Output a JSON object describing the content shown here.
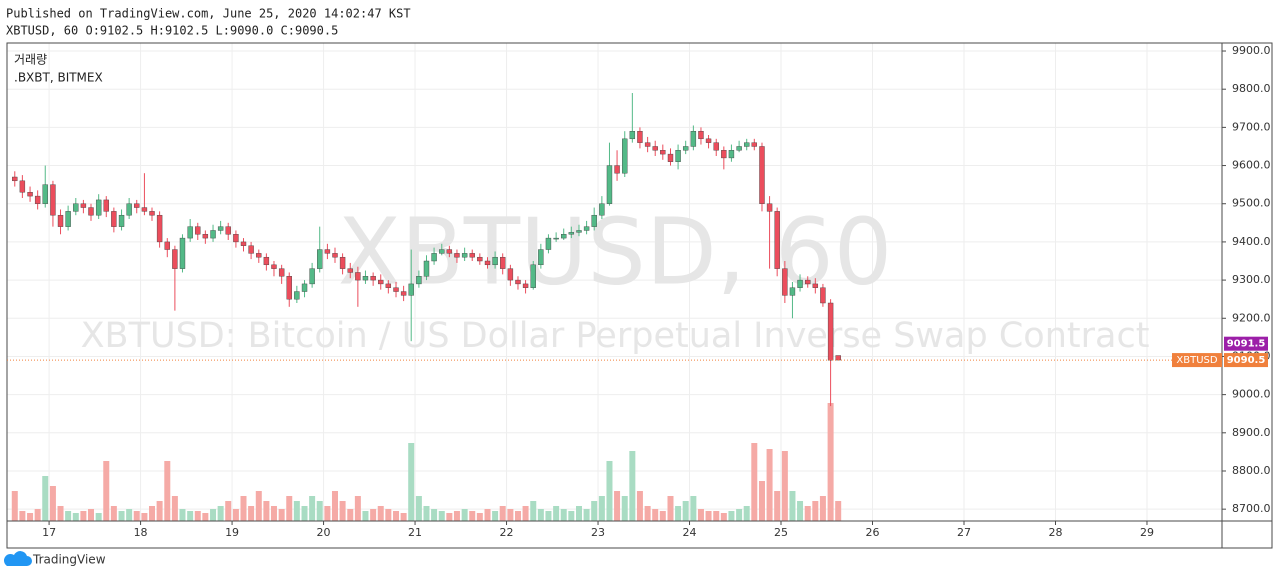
{
  "header": {
    "published": "Published on TradingView.com, June 25, 2020 14:02:47 KST",
    "symbol_line": "XBTUSD, 60 O:9102.5 H:9102.5 L:9090.0 C:9090.5"
  },
  "footer": {
    "brand": "TradingView"
  },
  "chart_data": {
    "type": "candlestick",
    "watermark": "XBTUSD, 60",
    "watermark_subtitle": "XBTUSD: Bitcoin / US Dollar Perpetual Inverse Swap Contract",
    "volume_legend": "거래량",
    "volume_source": ".BXBT, BITMEX",
    "up_color": "#53b987",
    "down_color": "#eb4d5c",
    "volume_up_color": "#a9dcc3",
    "volume_down_color": "#f5aaa6",
    "grid": true,
    "xlim": [
      16.54,
      29.82
    ],
    "xticks": [
      17,
      18,
      19,
      20,
      21,
      22,
      23,
      24,
      25,
      26,
      27,
      28,
      29
    ],
    "ylim": [
      8669,
      9921
    ],
    "yticks": [
      {
        "value": 8700,
        "label": "8700.0"
      },
      {
        "value": 8800,
        "label": "8800.0"
      },
      {
        "value": 8900,
        "label": "8900.0"
      },
      {
        "value": 9000,
        "label": "9000.0"
      },
      {
        "value": 9100,
        "label": "9100.0"
      },
      {
        "value": 9200,
        "label": "9200.0"
      },
      {
        "value": 9300,
        "label": "9300.0"
      },
      {
        "value": 9400,
        "label": "9400.0"
      },
      {
        "value": 9500,
        "label": "9500.0"
      },
      {
        "value": 9600,
        "label": "9600.0"
      },
      {
        "value": 9700,
        "label": "9700.0"
      },
      {
        "value": 9800,
        "label": "9800.0"
      },
      {
        "value": 9900,
        "label": "9900.0"
      }
    ],
    "last_price": {
      "label": "XBTUSD",
      "value": 9090.5,
      "color": "#f0803c"
    },
    "mark_price": {
      "value": 9091.5,
      "color": "#9c1fa8"
    },
    "x": [
      16.625,
      16.708,
      16.792,
      16.875,
      16.958,
      17.042,
      17.125,
      17.208,
      17.292,
      17.375,
      17.458,
      17.542,
      17.625,
      17.708,
      17.792,
      17.875,
      17.958,
      18.042,
      18.125,
      18.208,
      18.292,
      18.375,
      18.458,
      18.542,
      18.625,
      18.708,
      18.792,
      18.875,
      18.958,
      19.042,
      19.125,
      19.208,
      19.292,
      19.375,
      19.458,
      19.542,
      19.625,
      19.708,
      19.792,
      19.875,
      19.958,
      20.042,
      20.125,
      20.208,
      20.292,
      20.375,
      20.458,
      20.542,
      20.625,
      20.708,
      20.792,
      20.875,
      20.958,
      21.042,
      21.125,
      21.208,
      21.292,
      21.375,
      21.458,
      21.542,
      21.625,
      21.708,
      21.792,
      21.875,
      21.958,
      22.042,
      22.125,
      22.208,
      22.292,
      22.375,
      22.458,
      22.542,
      22.625,
      22.708,
      22.792,
      22.875,
      22.958,
      23.042,
      23.125,
      23.208,
      23.292,
      23.375,
      23.458,
      23.542,
      23.625,
      23.708,
      23.792,
      23.875,
      23.958,
      24.042,
      24.125,
      24.208,
      24.292,
      24.375,
      24.458,
      24.542,
      24.625,
      24.708,
      24.792,
      24.875,
      24.958,
      25.042,
      25.125,
      25.208,
      25.292,
      25.375,
      25.458,
      25.542,
      25.625
    ],
    "open": [
      9570,
      9560,
      9530,
      9520,
      9500,
      9550,
      9470,
      9440,
      9480,
      9500,
      9490,
      9470,
      9510,
      9480,
      9440,
      9470,
      9500,
      9490,
      9480,
      9470,
      9400,
      9380,
      9330,
      9410,
      9440,
      9420,
      9410,
      9430,
      9440,
      9420,
      9400,
      9390,
      9370,
      9360,
      9340,
      9330,
      9310,
      9250,
      9270,
      9290,
      9330,
      9380,
      9370,
      9360,
      9330,
      9320,
      9300,
      9310,
      9300,
      9290,
      9280,
      9270,
      9260,
      9290,
      9310,
      9350,
      9370,
      9380,
      9370,
      9360,
      9370,
      9360,
      9350,
      9340,
      9360,
      9330,
      9300,
      9290,
      9280,
      9340,
      9380,
      9410,
      9410,
      9420,
      9425,
      9430,
      9440,
      9470,
      9500,
      9600,
      9580,
      9670,
      9690,
      9660,
      9650,
      9640,
      9630,
      9610,
      9640,
      9650,
      9690,
      9670,
      9660,
      9640,
      9620,
      9640,
      9650,
      9660,
      9650,
      9500,
      9480,
      9330,
      9260,
      9280,
      9300,
      9290,
      9280,
      9240,
      9102.5
    ],
    "high": [
      9585,
      9575,
      9545,
      9535,
      9600,
      9560,
      9485,
      9495,
      9515,
      9510,
      9500,
      9525,
      9520,
      9490,
      9485,
      9515,
      9510,
      9580,
      9490,
      9480,
      9410,
      9390,
      9420,
      9460,
      9450,
      9430,
      9445,
      9455,
      9450,
      9430,
      9410,
      9400,
      9380,
      9370,
      9350,
      9340,
      9320,
      9285,
      9300,
      9345,
      9440,
      9395,
      9385,
      9370,
      9345,
      9335,
      9325,
      9320,
      9315,
      9300,
      9295,
      9285,
      9380,
      9325,
      9365,
      9385,
      9395,
      9390,
      9380,
      9385,
      9380,
      9370,
      9360,
      9375,
      9370,
      9340,
      9310,
      9300,
      9350,
      9395,
      9420,
      9425,
      9435,
      9440,
      9445,
      9455,
      9490,
      9520,
      9660,
      9640,
      9690,
      9790,
      9700,
      9675,
      9665,
      9655,
      9645,
      9655,
      9665,
      9705,
      9700,
      9680,
      9670,
      9650,
      9655,
      9665,
      9670,
      9670,
      9660,
      9520,
      9490,
      9350,
      9295,
      9315,
      9310,
      9305,
      9290,
      9250,
      9102.5
    ],
    "low": [
      9545,
      9515,
      9505,
      9485,
      9490,
      9440,
      9420,
      9430,
      9470,
      9475,
      9455,
      9460,
      9465,
      9425,
      9430,
      9460,
      9475,
      9470,
      9455,
      9385,
      9360,
      9220,
      9320,
      9400,
      9405,
      9395,
      9400,
      9420,
      9405,
      9385,
      9375,
      9355,
      9345,
      9325,
      9310,
      9290,
      9230,
      9240,
      9255,
      9280,
      9320,
      9355,
      9345,
      9315,
      9305,
      9230,
      9290,
      9285,
      9275,
      9265,
      9255,
      9245,
      9140,
      9280,
      9300,
      9340,
      9365,
      9360,
      9345,
      9350,
      9350,
      9340,
      9330,
      9330,
      9315,
      9285,
      9275,
      9265,
      9275,
      9330,
      9370,
      9400,
      9405,
      9410,
      9415,
      9420,
      9430,
      9460,
      9495,
      9560,
      9570,
      9660,
      9645,
      9635,
      9625,
      9615,
      9600,
      9590,
      9630,
      9640,
      9655,
      9645,
      9625,
      9590,
      9610,
      9635,
      9640,
      9640,
      9480,
      9330,
      9310,
      9240,
      9200,
      9270,
      9280,
      9265,
      9230,
      8970,
      9090
    ],
    "close": [
      9560,
      9530,
      9520,
      9500,
      9550,
      9470,
      9440,
      9480,
      9500,
      9490,
      9470,
      9510,
      9480,
      9440,
      9470,
      9500,
      9490,
      9480,
      9470,
      9400,
      9380,
      9330,
      9410,
      9440,
      9420,
      9410,
      9430,
      9440,
      9420,
      9400,
      9390,
      9370,
      9360,
      9340,
      9330,
      9310,
      9250,
      9270,
      9290,
      9330,
      9380,
      9370,
      9360,
      9330,
      9320,
      9300,
      9310,
      9300,
      9290,
      9280,
      9270,
      9260,
      9290,
      9310,
      9350,
      9370,
      9380,
      9370,
      9360,
      9370,
      9360,
      9350,
      9340,
      9360,
      9330,
      9300,
      9290,
      9280,
      9340,
      9380,
      9410,
      9410,
      9420,
      9425,
      9430,
      9440,
      9470,
      9500,
      9600,
      9580,
      9670,
      9690,
      9660,
      9650,
      9640,
      9630,
      9610,
      9640,
      9650,
      9690,
      9670,
      9660,
      9640,
      9620,
      9640,
      9650,
      9660,
      9650,
      9500,
      9480,
      9330,
      9260,
      9280,
      9300,
      9290,
      9280,
      9240,
      9090,
      9090.5
    ],
    "volume": [
      30,
      10,
      8,
      12,
      45,
      35,
      15,
      10,
      8,
      10,
      12,
      8,
      60,
      15,
      10,
      12,
      10,
      8,
      15,
      20,
      60,
      25,
      12,
      10,
      10,
      8,
      12,
      15,
      20,
      12,
      25,
      15,
      30,
      20,
      15,
      12,
      25,
      20,
      15,
      25,
      20,
      15,
      30,
      20,
      12,
      25,
      10,
      12,
      15,
      12,
      10,
      8,
      78,
      25,
      15,
      12,
      10,
      8,
      10,
      12,
      10,
      8,
      12,
      10,
      15,
      12,
      10,
      15,
      20,
      12,
      10,
      15,
      12,
      10,
      15,
      12,
      20,
      25,
      60,
      30,
      25,
      70,
      30,
      15,
      12,
      10,
      25,
      15,
      20,
      25,
      12,
      10,
      10,
      8,
      10,
      12,
      15,
      78,
      40,
      72,
      30,
      70,
      30,
      20,
      15,
      20,
      25,
      118,
      20
    ]
  }
}
